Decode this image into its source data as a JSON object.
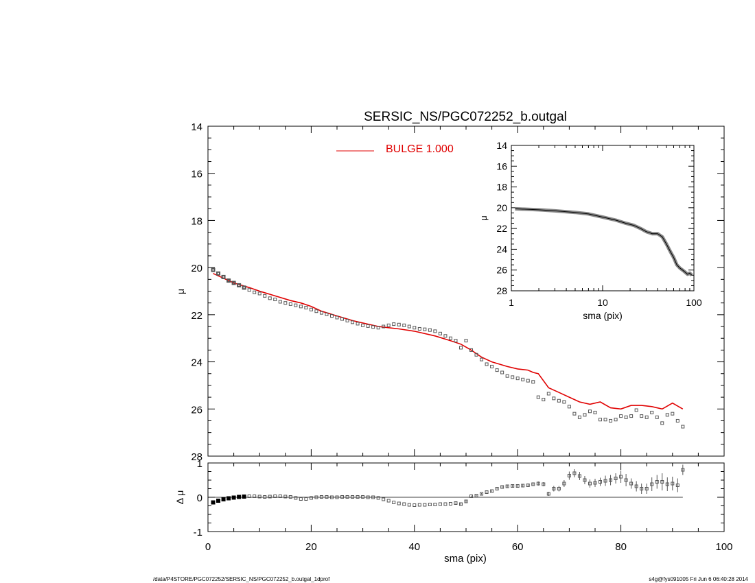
{
  "footer": {
    "left": "/data/P4STORE/PGC072252/SERSIC_NS/PGC072252_b.outgal_1dprof",
    "right": "s4g@fys091005  Fri Jun  6 06:40:28 2014"
  },
  "colors": {
    "model": "#e00000",
    "points": "#555555",
    "axis": "#000000"
  },
  "chart_data": [
    {
      "id": "main",
      "type": "scatter",
      "title": "SERSIC_NS/PGC072252_b.outgal",
      "xlabel": "",
      "ylabel": "μ",
      "xlim": [
        0,
        100
      ],
      "ylim": [
        28,
        14
      ],
      "xticks": [
        0,
        20,
        40,
        60,
        80,
        100
      ],
      "yticks": [
        14,
        16,
        18,
        20,
        22,
        24,
        26,
        28
      ],
      "legend": {
        "label": "BULGE  1.000",
        "placement": "top-center"
      },
      "series": [
        {
          "name": "BULGE  1.000",
          "kind": "line",
          "x": [
            1,
            3,
            5,
            8,
            10,
            13,
            16,
            18,
            20,
            22,
            25,
            28,
            30,
            33,
            35,
            37,
            40,
            44,
            47,
            49,
            51,
            53,
            55,
            58,
            60,
            62,
            63,
            64,
            66,
            68,
            70,
            72,
            74,
            76,
            78,
            80,
            82,
            84,
            86,
            88,
            90,
            92
          ],
          "y": [
            20.25,
            20.45,
            20.65,
            20.85,
            21.0,
            21.2,
            21.4,
            21.5,
            21.65,
            21.85,
            22.05,
            22.25,
            22.35,
            22.5,
            22.55,
            22.6,
            22.7,
            22.9,
            23.1,
            23.25,
            23.5,
            23.8,
            24.0,
            24.2,
            24.3,
            24.35,
            24.45,
            24.5,
            25.1,
            25.3,
            25.5,
            25.7,
            25.8,
            25.7,
            25.95,
            26.0,
            25.85,
            25.85,
            25.9,
            26.0,
            25.75,
            26.0
          ]
        },
        {
          "name": "",
          "kind": "points",
          "x": [
            1,
            2,
            3,
            4,
            5,
            6,
            7,
            8,
            9,
            10,
            11,
            12,
            13,
            14,
            15,
            16,
            17,
            18,
            19,
            20,
            21,
            22,
            23,
            24,
            25,
            26,
            27,
            28,
            29,
            30,
            31,
            32,
            33,
            34,
            35,
            36,
            37,
            38,
            39,
            40,
            41,
            42,
            43,
            44,
            45,
            46,
            47,
            48,
            49,
            50,
            51,
            52,
            53,
            54,
            55,
            56,
            57,
            58,
            59,
            60,
            61,
            62,
            63,
            64,
            65,
            66,
            67,
            68,
            69,
            70,
            71,
            72,
            73,
            74,
            75,
            76,
            77,
            78,
            79,
            80,
            81,
            82,
            83,
            84,
            85,
            86,
            87,
            88,
            89,
            90,
            91,
            92
          ],
          "y": [
            20.1,
            20.25,
            20.4,
            20.55,
            20.65,
            20.75,
            20.85,
            20.95,
            21.05,
            21.1,
            21.2,
            21.3,
            21.35,
            21.45,
            21.5,
            21.55,
            21.6,
            21.65,
            21.7,
            21.78,
            21.85,
            21.92,
            21.98,
            22.05,
            22.12,
            22.18,
            22.25,
            22.32,
            22.38,
            22.45,
            22.48,
            22.52,
            22.55,
            22.5,
            22.45,
            22.4,
            22.42,
            22.45,
            22.5,
            22.55,
            22.6,
            22.62,
            22.65,
            22.7,
            22.8,
            22.9,
            23.0,
            23.1,
            23.4,
            23.1,
            23.5,
            23.7,
            23.9,
            24.1,
            24.2,
            24.35,
            24.45,
            24.6,
            24.65,
            24.7,
            24.75,
            24.8,
            24.85,
            25.5,
            25.6,
            25.35,
            25.55,
            25.65,
            25.7,
            25.9,
            26.2,
            26.35,
            26.25,
            26.1,
            26.15,
            26.45,
            26.45,
            26.5,
            26.45,
            26.3,
            26.35,
            26.3,
            26.05,
            26.3,
            26.35,
            26.15,
            26.35,
            26.6,
            26.25,
            26.2,
            26.5,
            26.75
          ]
        }
      ]
    },
    {
      "id": "residual",
      "type": "scatter",
      "title": "",
      "xlabel": "sma (pix)",
      "ylabel": "Δ μ",
      "xlim": [
        0,
        100
      ],
      "ylim": [
        -1,
        1
      ],
      "xticks": [
        0,
        20,
        40,
        60,
        80,
        100
      ],
      "yticks": [
        -1,
        0,
        1
      ],
      "reference_line": 0,
      "series": [
        {
          "name": "",
          "kind": "points",
          "x": [
            1,
            2,
            3,
            4,
            5,
            6,
            7,
            8,
            9,
            10,
            11,
            12,
            13,
            14,
            15,
            16,
            17,
            18,
            19,
            20,
            21,
            22,
            23,
            24,
            25,
            26,
            27,
            28,
            29,
            30,
            31,
            32,
            33,
            34,
            35,
            36,
            37,
            38,
            39,
            40,
            41,
            42,
            43,
            44,
            45,
            46,
            47,
            48,
            49,
            50,
            51,
            52,
            53,
            54,
            55,
            56,
            57,
            58,
            59,
            60,
            61,
            62,
            63,
            64,
            65,
            66,
            67,
            68,
            69,
            70,
            71,
            72,
            73,
            74,
            75,
            76,
            77,
            78,
            79,
            80,
            81,
            82,
            83,
            84,
            85,
            86,
            87,
            88,
            89,
            90,
            91,
            92
          ],
          "y": [
            -0.15,
            -0.1,
            -0.06,
            -0.03,
            -0.01,
            0.01,
            0.02,
            0.03,
            0.03,
            0.02,
            0.01,
            0.02,
            0.03,
            0.03,
            0.02,
            0.01,
            -0.02,
            -0.05,
            -0.05,
            -0.02,
            0.0,
            0.01,
            0.01,
            0.0,
            0.0,
            0.01,
            0.01,
            0.01,
            0.01,
            0.01,
            0.0,
            0.0,
            -0.02,
            -0.06,
            -0.1,
            -0.15,
            -0.18,
            -0.2,
            -0.22,
            -0.23,
            -0.22,
            -0.22,
            -0.21,
            -0.21,
            -0.2,
            -0.2,
            -0.19,
            -0.17,
            -0.2,
            -0.12,
            0.03,
            0.05,
            0.1,
            0.15,
            0.18,
            0.25,
            0.3,
            0.32,
            0.33,
            0.33,
            0.34,
            0.35,
            0.38,
            0.4,
            0.38,
            0.1,
            0.25,
            0.25,
            0.4,
            0.63,
            0.7,
            0.62,
            0.5,
            0.4,
            0.42,
            0.45,
            0.48,
            0.5,
            0.55,
            0.6,
            0.5,
            0.4,
            0.32,
            0.25,
            0.25,
            0.38,
            0.45,
            0.45,
            0.38,
            0.4,
            0.35,
            0.8
          ],
          "err": [
            0.01,
            0.01,
            0.01,
            0.01,
            0.01,
            0.01,
            0.01,
            0.01,
            0.01,
            0.01,
            0.01,
            0.01,
            0.01,
            0.01,
            0.01,
            0.01,
            0.01,
            0.01,
            0.01,
            0.01,
            0.01,
            0.01,
            0.01,
            0.01,
            0.01,
            0.01,
            0.01,
            0.01,
            0.01,
            0.01,
            0.01,
            0.01,
            0.01,
            0.01,
            0.01,
            0.01,
            0.01,
            0.01,
            0.01,
            0.01,
            0.01,
            0.01,
            0.01,
            0.01,
            0.01,
            0.01,
            0.01,
            0.02,
            0.05,
            0.03,
            0.02,
            0.02,
            0.02,
            0.02,
            0.02,
            0.02,
            0.03,
            0.03,
            0.03,
            0.03,
            0.03,
            0.03,
            0.04,
            0.06,
            0.06,
            0.06,
            0.08,
            0.08,
            0.1,
            0.12,
            0.12,
            0.12,
            0.12,
            0.12,
            0.12,
            0.12,
            0.15,
            0.15,
            0.15,
            0.18,
            0.18,
            0.15,
            0.15,
            0.15,
            0.15,
            0.2,
            0.2,
            0.25,
            0.2,
            0.2,
            0.2,
            0.15
          ]
        }
      ]
    },
    {
      "id": "inset",
      "type": "line",
      "title": "",
      "xlabel": "sma (pix)",
      "ylabel": "μ",
      "xscale": "log",
      "xlim": [
        1,
        100
      ],
      "ylim": [
        28,
        14
      ],
      "xticks": [
        1,
        10,
        100
      ],
      "yticks": [
        14,
        16,
        18,
        20,
        22,
        24,
        26,
        28
      ],
      "series": [
        {
          "name": "",
          "kind": "line",
          "x": [
            1.1,
            2,
            3,
            5,
            7,
            10,
            14,
            18,
            22,
            26,
            30,
            35,
            40,
            45,
            50,
            55,
            60,
            65,
            70,
            75,
            80,
            85,
            90,
            95
          ],
          "y": [
            20.1,
            20.2,
            20.3,
            20.45,
            20.6,
            20.9,
            21.2,
            21.5,
            21.7,
            22.0,
            22.3,
            22.5,
            22.5,
            22.8,
            23.5,
            24.2,
            24.8,
            25.5,
            25.8,
            26.0,
            26.2,
            26.4,
            26.3,
            26.5
          ]
        }
      ]
    }
  ]
}
